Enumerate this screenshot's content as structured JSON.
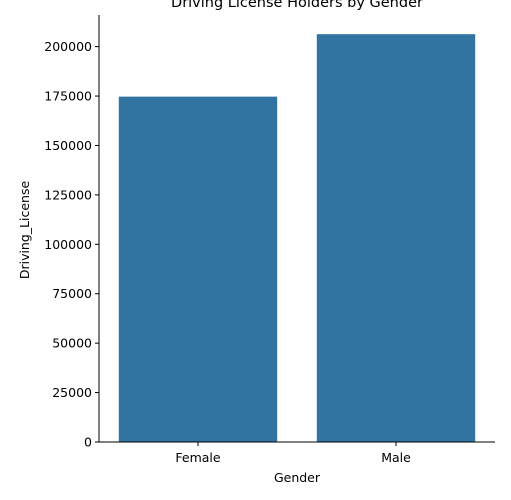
{
  "chart_data": {
    "type": "bar",
    "title": "Driving License Holders by Gender",
    "xlabel": "Gender",
    "ylabel": "Driving_License",
    "categories": [
      "Female",
      "Male"
    ],
    "values": [
      174700,
      206300
    ],
    "ylim": [
      0,
      216000
    ],
    "yticks": [
      0,
      25000,
      50000,
      75000,
      100000,
      125000,
      150000,
      175000,
      200000
    ],
    "bar_color": "#3274a1",
    "grid": false,
    "legend": "none"
  }
}
